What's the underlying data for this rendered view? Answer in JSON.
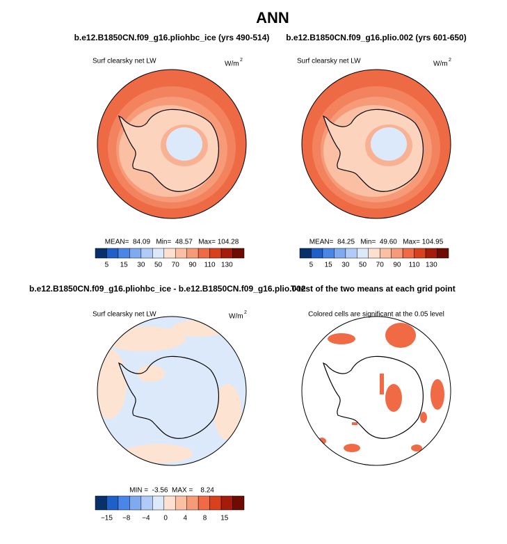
{
  "title": "ANN",
  "panels": [
    {
      "title": "b.e12.B1850CN.f09_g16.pliohbc_ice (yrs 490-514)",
      "label": "Surf clearsky net LW",
      "units": "W/m",
      "units_power": "2",
      "stats": "MEAN=  84.09   Min=  48.57   Max= 104.28"
    },
    {
      "title": "b.e12.B1850CN.f09_g16.plio.002 (yrs 601-650)",
      "label": "Surf clearsky net LW",
      "units": "W/m",
      "units_power": "2",
      "stats": "MEAN=  84.25   Min=  49.60   Max= 104.95"
    },
    {
      "title": "b.e12.B1850CN.f09_g16.pliohbc_ice - b.e12.B1850CN.f09_g16.plio.002",
      "label": "Surf clearsky net LW",
      "units": "W/m",
      "units_power": "2",
      "stats": "MIN =  -3.56  MAX =    8.24"
    },
    {
      "title": "T-test of the two means at each grid point",
      "label": "Colored cells are significant at the 0.05 level"
    }
  ],
  "colorbars": [
    {
      "labels": [
        "5",
        "15",
        "30",
        "50",
        "70",
        "90",
        "110",
        "130"
      ],
      "colors": [
        "#08306b",
        "#1f5fc8",
        "#4a86e8",
        "#7faaf0",
        "#b0cbf7",
        "#dbe9fb",
        "#fde0d0",
        "#fbbfa3",
        "#f79a78",
        "#f06a45",
        "#d9401c",
        "#a51d0a",
        "#6e0c02"
      ]
    },
    {
      "labels": [
        "5",
        "15",
        "30",
        "50",
        "70",
        "90",
        "110",
        "130"
      ],
      "colors": [
        "#08306b",
        "#1f5fc8",
        "#4a86e8",
        "#7faaf0",
        "#b0cbf7",
        "#dbe9fb",
        "#fde0d0",
        "#fbbfa3",
        "#f79a78",
        "#f06a45",
        "#d9401c",
        "#a51d0a",
        "#6e0c02"
      ]
    },
    {
      "labels": [
        "−15",
        "−8",
        "−4",
        "0",
        "4",
        "8",
        "15"
      ],
      "colors": [
        "#08306b",
        "#1f5fc8",
        "#4a86e8",
        "#7faaf0",
        "#b0cbf7",
        "#dbe9fb",
        "#fde0d0",
        "#fbbfa3",
        "#f79a78",
        "#f06a45",
        "#d9401c",
        "#a51d0a",
        "#6e0c02"
      ]
    }
  ]
}
